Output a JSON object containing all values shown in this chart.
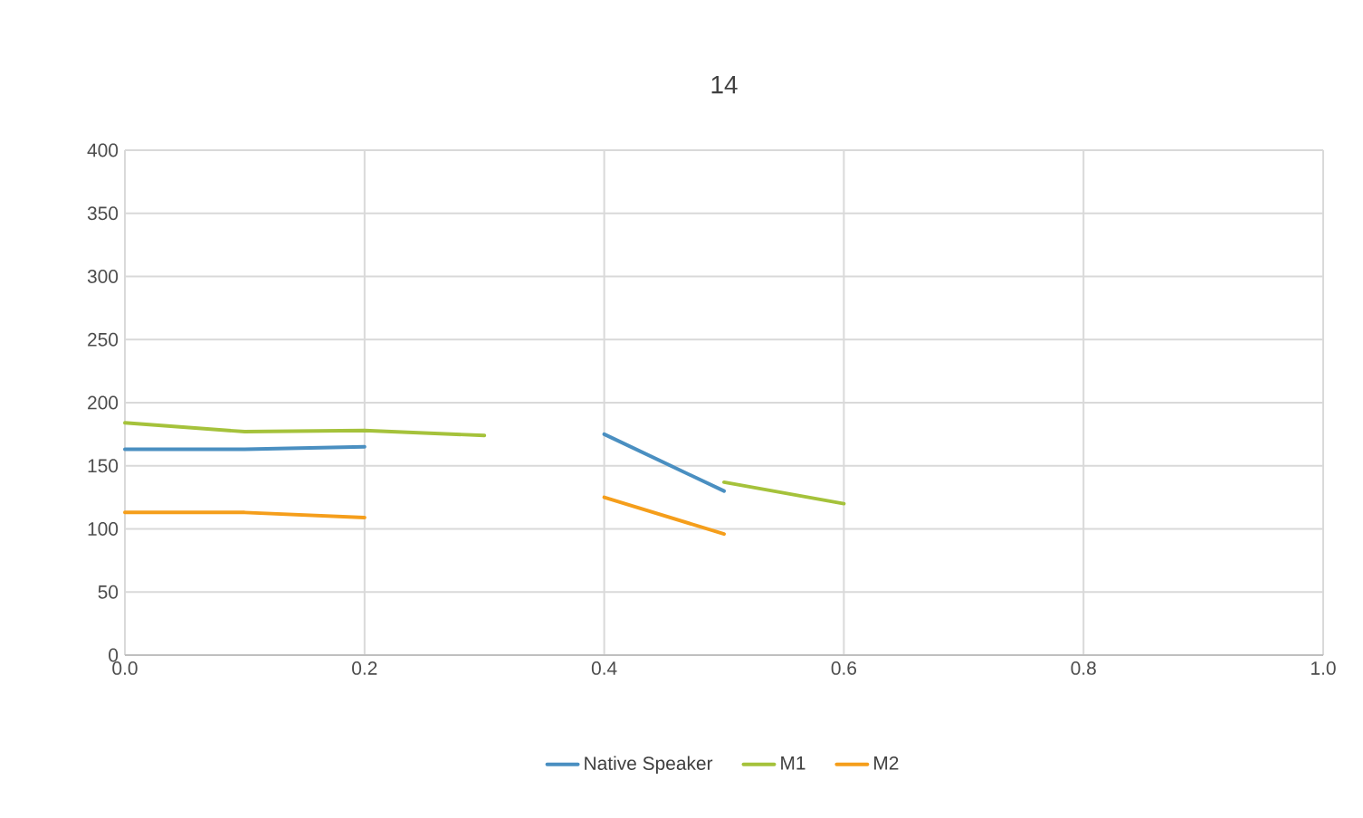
{
  "chart_data": {
    "type": "line",
    "title": "14",
    "x": [
      0,
      0.1,
      0.2,
      0.3,
      0.4,
      0.5,
      0.6
    ],
    "series": [
      {
        "name": "Native Speaker",
        "color": "#4a8fc1",
        "values": [
          163,
          163,
          165,
          null,
          175,
          130,
          null
        ]
      },
      {
        "name": "M1",
        "color": "#a5c23b",
        "values": [
          184,
          177,
          178,
          174,
          null,
          137,
          120
        ]
      },
      {
        "name": "M2",
        "color": "#f59e1b",
        "values": [
          113,
          113,
          109,
          null,
          125,
          96,
          null
        ]
      }
    ],
    "xlim": [
      0,
      1
    ],
    "ylim": [
      0,
      400
    ],
    "xticks": [
      {
        "value": 0,
        "label": "0.0"
      },
      {
        "value": 0.2,
        "label": "0.2"
      },
      {
        "value": 0.4,
        "label": "0.4"
      },
      {
        "value": 0.6,
        "label": "0.6"
      },
      {
        "value": 0.8,
        "label": "0.8"
      },
      {
        "value": 1,
        "label": "1.0"
      }
    ],
    "yticks": [
      0,
      50,
      100,
      150,
      200,
      250,
      300,
      350,
      400
    ],
    "grid": true,
    "legend": "bottom",
    "marker": "none",
    "line_style": "solid"
  }
}
